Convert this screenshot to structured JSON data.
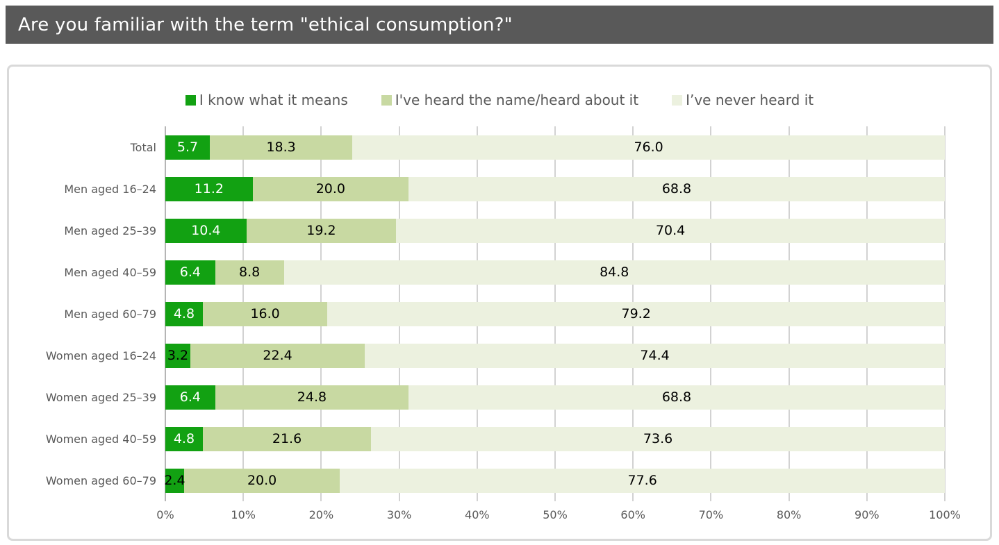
{
  "header": {
    "title": "Are you familiar with the term \"ethical consumption?\""
  },
  "colors": {
    "title_bar_bg": "#595959",
    "title_text": "#ffffff",
    "card_border": "#d9d9d9",
    "text_gray": "#595959",
    "gridline": "#d2d2d2",
    "axis_line": "#b5b5b5",
    "value_label_dark": "#000000",
    "value_label_light": "#ffffff"
  },
  "chart_data": {
    "type": "bar",
    "stacked": true,
    "orientation": "horizontal",
    "title": "Are you familiar with the term \"ethical consumption?\"",
    "categories": [
      "Total",
      "Men aged 16–24",
      "Men aged 25–39",
      "Men aged 40–59",
      "Men aged 60–79",
      "Women aged 16–24",
      "Women aged 25–39",
      "Women aged 40–59",
      "Women aged 60–79"
    ],
    "series": [
      {
        "name": "I know what it means",
        "color": "#12a112",
        "values": [
          5.7,
          11.2,
          10.4,
          6.4,
          4.8,
          3.2,
          6.4,
          4.8,
          2.4
        ]
      },
      {
        "name": "I've heard the name/heard about it",
        "color": "#c8d9a2",
        "values": [
          18.3,
          20.0,
          19.2,
          8.8,
          16.0,
          22.4,
          24.8,
          21.6,
          20.0
        ]
      },
      {
        "name": "I’ve never heard it",
        "color": "#ecf1df",
        "values": [
          76.0,
          68.8,
          70.4,
          84.8,
          79.2,
          74.4,
          68.8,
          73.6,
          77.6
        ]
      }
    ],
    "x_axis": {
      "min": 0,
      "max": 100,
      "tick_step": 10,
      "ticks": [
        "0%",
        "10%",
        "20%",
        "30%",
        "40%",
        "50%",
        "60%",
        "70%",
        "80%",
        "90%",
        "100%"
      ]
    },
    "legend_position": "top",
    "grid": true,
    "value_label_decimals": 1
  }
}
